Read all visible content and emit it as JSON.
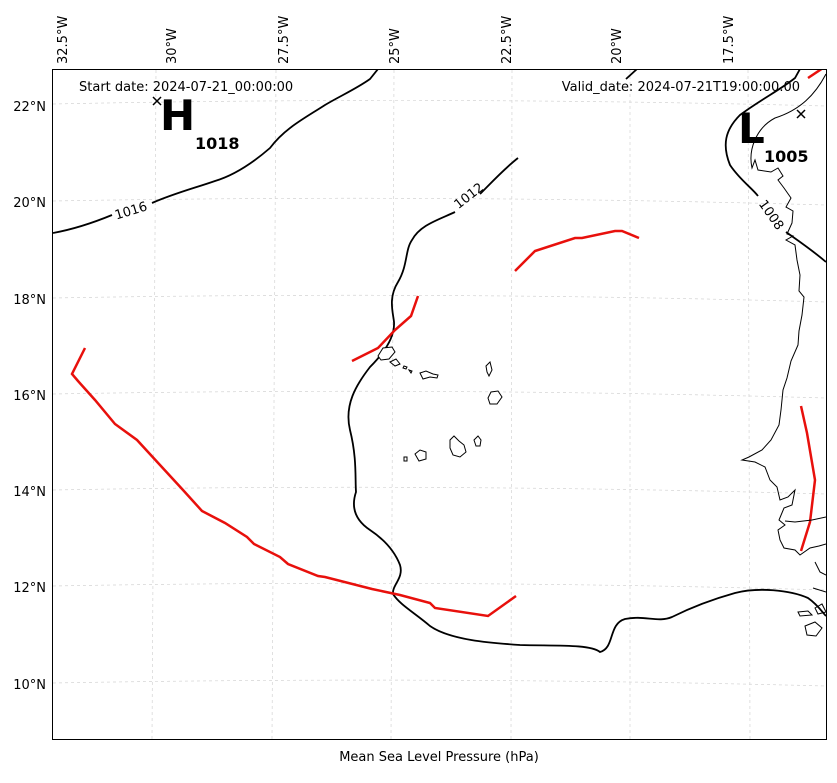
{
  "header": {
    "start_date": "Start date: 2024-07-21_00:00:00",
    "valid_date": "Valid_date: 2024-07-21T19:00:00.00"
  },
  "caption": "Mean Sea Level Pressure (hPa)",
  "longitude_ticks": [
    "32.5°W",
    "30°W",
    "27.5°W",
    "25°W",
    "22.5°W",
    "20°W",
    "17.5°W"
  ],
  "latitude_ticks": [
    "22°N",
    "20°N",
    "18°N",
    "16°N",
    "14°N",
    "12°N",
    "10°N"
  ],
  "pressure_centers": [
    {
      "type": "H",
      "value": "1018"
    },
    {
      "type": "L",
      "value": "1005"
    }
  ],
  "contour_labels": [
    "1016",
    "1012",
    "1008"
  ],
  "colors": {
    "isobar": "#000000",
    "front": "#e8100c",
    "gridline": "#cccccc",
    "coastline": "#000000"
  }
}
